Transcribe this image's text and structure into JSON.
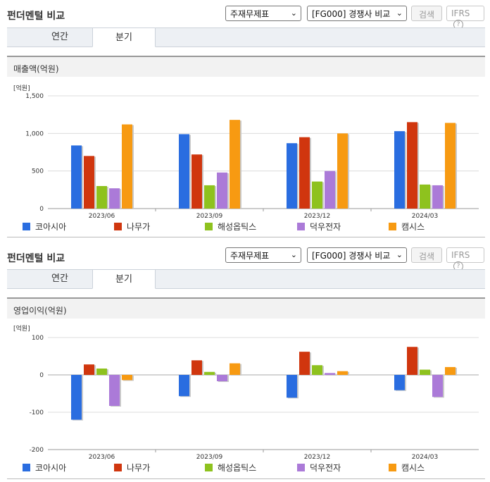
{
  "header": {
    "title": "펀더멘털 비교",
    "select_metric": "주재무제표",
    "select_compare": "[FG000] 경쟁사 비교",
    "search_button": "검색",
    "ifrs_label": "IFRS",
    "help_icon": "?"
  },
  "tabs": [
    {
      "label": "연간"
    },
    {
      "label": "분기"
    }
  ],
  "active_tab": "분기",
  "unit_label": "[억원]",
  "colors": {
    "코아시아": "#2a6de0",
    "나무가": "#d0360e",
    "해성옵틱스": "#8ec21e",
    "덕우전자": "#ab7ad8",
    "캠시스": "#f79a12"
  },
  "legend": [
    "코아시아",
    "나무가",
    "해성옵틱스",
    "덕우전자",
    "캠시스"
  ],
  "chart_data": [
    {
      "type": "bar",
      "title": "매출액(억원)",
      "categories": [
        "2023/06",
        "2023/09",
        "2023/12",
        "2024/03"
      ],
      "ylim": [
        0,
        1500
      ],
      "yticks": [
        "1,500",
        "1,000",
        "500",
        "0"
      ],
      "ytick_values": [
        1500,
        1000,
        500,
        0
      ],
      "grid": true,
      "legend_position": "bottom",
      "series": [
        {
          "name": "코아시아",
          "values": [
            840,
            990,
            870,
            1030
          ]
        },
        {
          "name": "나무가",
          "values": [
            700,
            720,
            950,
            1150
          ]
        },
        {
          "name": "해성옵틱스",
          "values": [
            300,
            310,
            360,
            320
          ]
        },
        {
          "name": "덕우전자",
          "values": [
            270,
            480,
            500,
            310
          ]
        },
        {
          "name": "캠시스",
          "values": [
            1120,
            1180,
            1000,
            1140
          ]
        }
      ]
    },
    {
      "type": "bar",
      "title": "영업이익(억원)",
      "categories": [
        "2023/06",
        "2023/09",
        "2023/12",
        "2024/03"
      ],
      "ylim": [
        -200,
        100
      ],
      "yticks": [
        "100",
        "0",
        "-100",
        "-200"
      ],
      "ytick_values": [
        100,
        0,
        -100,
        -200
      ],
      "grid": true,
      "legend_position": "bottom",
      "series": [
        {
          "name": "코아시아",
          "values": [
            -120,
            -57,
            -61,
            -41
          ]
        },
        {
          "name": "나무가",
          "values": [
            28,
            39,
            62,
            75
          ]
        },
        {
          "name": "해성옵틱스",
          "values": [
            17,
            8,
            26,
            14
          ]
        },
        {
          "name": "덕우전자",
          "values": [
            -83,
            -17,
            5,
            -59
          ]
        },
        {
          "name": "캠시스",
          "values": [
            -14,
            31,
            10,
            21
          ]
        }
      ]
    }
  ]
}
